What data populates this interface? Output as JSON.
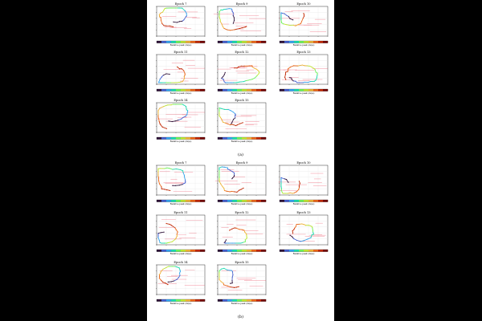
{
  "figure": {
    "parts": [
      {
        "caption": "(a)",
        "panels": [
          {
            "title": "Epoch 7"
          },
          {
            "title": "Epoch 9"
          },
          {
            "title": "Epoch 10"
          },
          {
            "title": "Epoch 11"
          },
          {
            "title": "Epoch 12"
          },
          {
            "title": "Epoch 13"
          },
          {
            "title": "Epoch 14"
          },
          {
            "title": "Epoch 15"
          }
        ]
      },
      {
        "caption": "(b)",
        "panels": [
          {
            "title": "Epoch 7"
          },
          {
            "title": "Epoch 9"
          },
          {
            "title": "Epoch 10"
          },
          {
            "title": "Epoch 11"
          },
          {
            "title": "Epoch 12"
          },
          {
            "title": "Epoch 13"
          },
          {
            "title": "Epoch 14"
          },
          {
            "title": "Epoch 15"
          }
        ]
      }
    ],
    "colorbar_label": "Relative peak (days)",
    "colors": {
      "colorbar": [
        "#30123b",
        "#4662d7",
        "#36aaf9",
        "#1ae4b6",
        "#72fe5e",
        "#c8ef34",
        "#faba39",
        "#f66b19",
        "#ca2a04",
        "#7a0403"
      ],
      "path_dark": "#222222",
      "error_red": "#e8384f"
    }
  },
  "chart_data": {
    "type": "scatter",
    "note_types": "hysteresis track scatter panels with colour-coded time",
    "panel_count": 16
  }
}
